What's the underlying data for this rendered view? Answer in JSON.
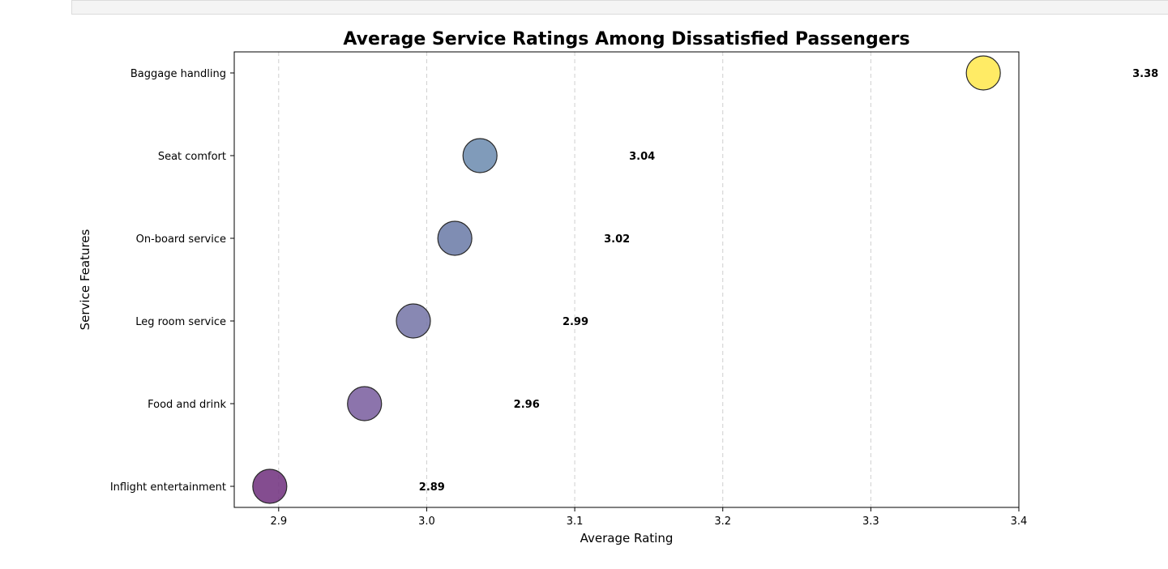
{
  "chart_data": {
    "type": "scatter",
    "title": "Average Service Ratings Among Dissatisfied Passengers",
    "xlabel": "Average Rating",
    "ylabel": "Service Features",
    "xlim": [
      2.87,
      3.4
    ],
    "x_ticks": [
      "2.9",
      "3.0",
      "3.1",
      "3.2",
      "3.3",
      "3.4"
    ],
    "grid": "vertical dashed",
    "categories": [
      "Inflight entertainment",
      "Food and drink",
      "Leg room service",
      "On-board service",
      "Seat comfort",
      "Baggage handling"
    ],
    "values": [
      2.894,
      2.958,
      2.991,
      3.019,
      3.036,
      3.376
    ],
    "value_labels": [
      "2.89",
      "2.96",
      "2.99",
      "3.02",
      "3.04",
      "3.38"
    ],
    "colors": [
      "#6f2e7d",
      "#785c9e",
      "#7373a6",
      "#6879a6",
      "#6a89ae",
      "#ffe74a"
    ],
    "marker_style": "circles with dark edge, semi-transparent"
  }
}
